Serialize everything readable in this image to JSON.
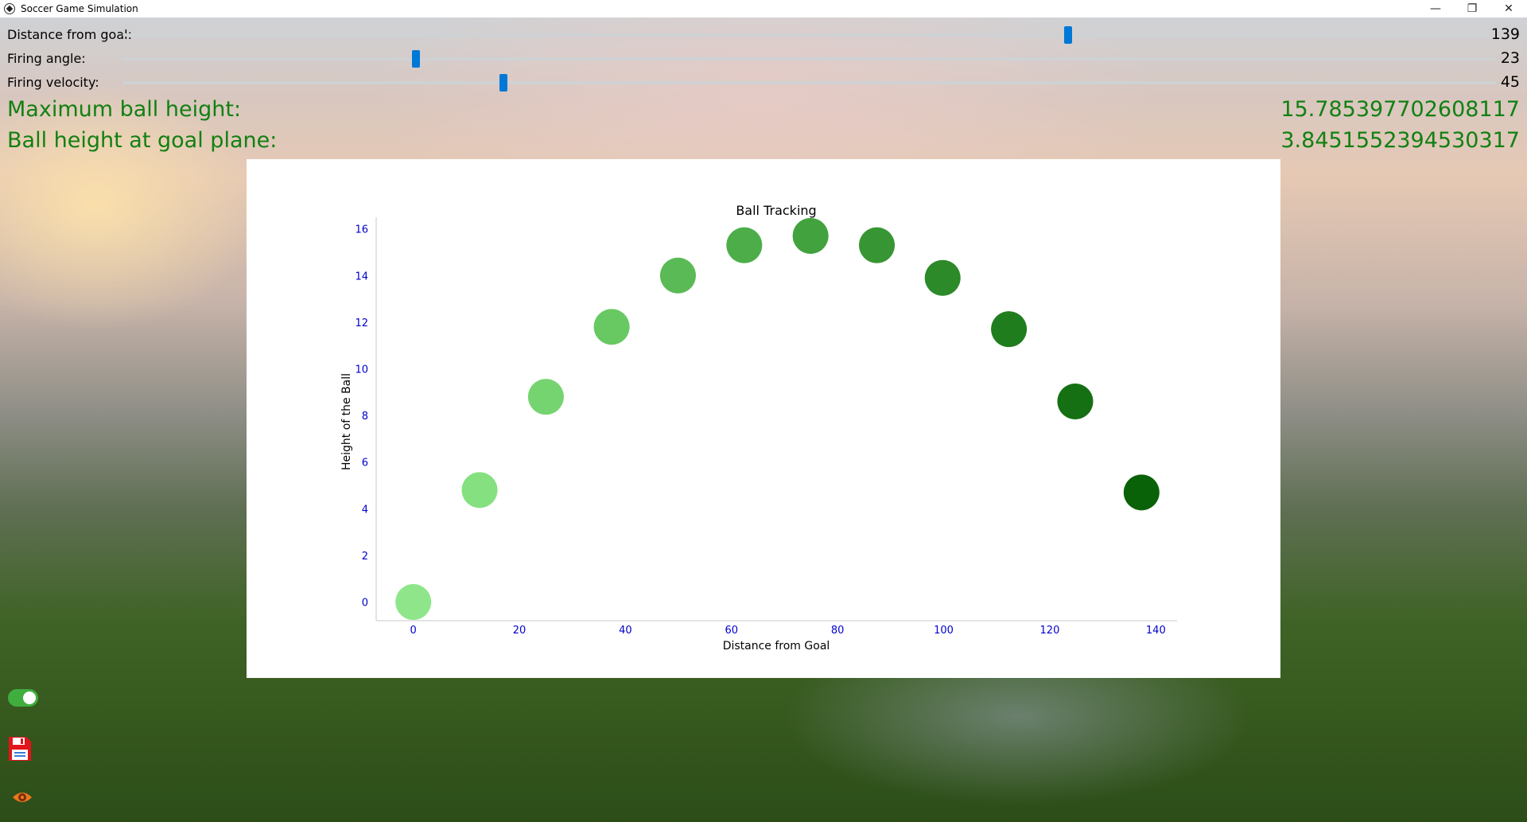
{
  "window": {
    "title": "Soccer Game Simulation",
    "minimize_glyph": "—",
    "restore_glyph": "❐",
    "close_glyph": "✕"
  },
  "sliders": [
    {
      "label": "Distance from goal:",
      "value": "139",
      "position": 0.6926
    },
    {
      "label": "Firing angle:",
      "value": "23",
      "position": 0.2125
    },
    {
      "label": "Firing velocity:",
      "value": "45",
      "position": 0.2785
    }
  ],
  "results": {
    "max_height_label": "Maximum ball height:",
    "max_height_value": "15.785397702608117",
    "goal_height_label": "Ball height at goal plane:",
    "goal_height_value": "3.8451552394530317"
  },
  "chart_data": {
    "type": "scatter",
    "title": "Ball Tracking",
    "xlabel": "Distance from Goal",
    "ylabel": "Height of the Ball",
    "xlim": [
      -7,
      144
    ],
    "ylim": [
      -0.8,
      16.5
    ],
    "xticks": [
      0,
      20,
      40,
      60,
      80,
      100,
      120,
      140
    ],
    "yticks": [
      0,
      2,
      4,
      6,
      8,
      10,
      12,
      14,
      16
    ],
    "points": [
      {
        "x": 0,
        "y": 0,
        "color": "#8fe68a"
      },
      {
        "x": 12.5,
        "y": 4.8,
        "color": "#85e080"
      },
      {
        "x": 25,
        "y": 8.8,
        "color": "#76d470"
      },
      {
        "x": 37.4,
        "y": 11.8,
        "color": "#68c862"
      },
      {
        "x": 49.9,
        "y": 14.0,
        "color": "#5aba55"
      },
      {
        "x": 62.4,
        "y": 15.3,
        "color": "#4dae49"
      },
      {
        "x": 74.9,
        "y": 15.7,
        "color": "#42a23e"
      },
      {
        "x": 87.4,
        "y": 15.3,
        "color": "#379633"
      },
      {
        "x": 99.8,
        "y": 13.9,
        "color": "#2c8a29"
      },
      {
        "x": 112.3,
        "y": 11.7,
        "color": "#207d1d"
      },
      {
        "x": 124.8,
        "y": 8.6,
        "color": "#147012"
      },
      {
        "x": 137.3,
        "y": 4.7,
        "color": "#0a6208"
      }
    ],
    "point_color_start": "#8fe68a",
    "point_color_end": "#0a6208",
    "tick_color": "#0000cc",
    "grid": false
  },
  "toolbar": {
    "toggle_on": true,
    "save_icon": "save-icon",
    "eye_icon": "eye-icon"
  }
}
